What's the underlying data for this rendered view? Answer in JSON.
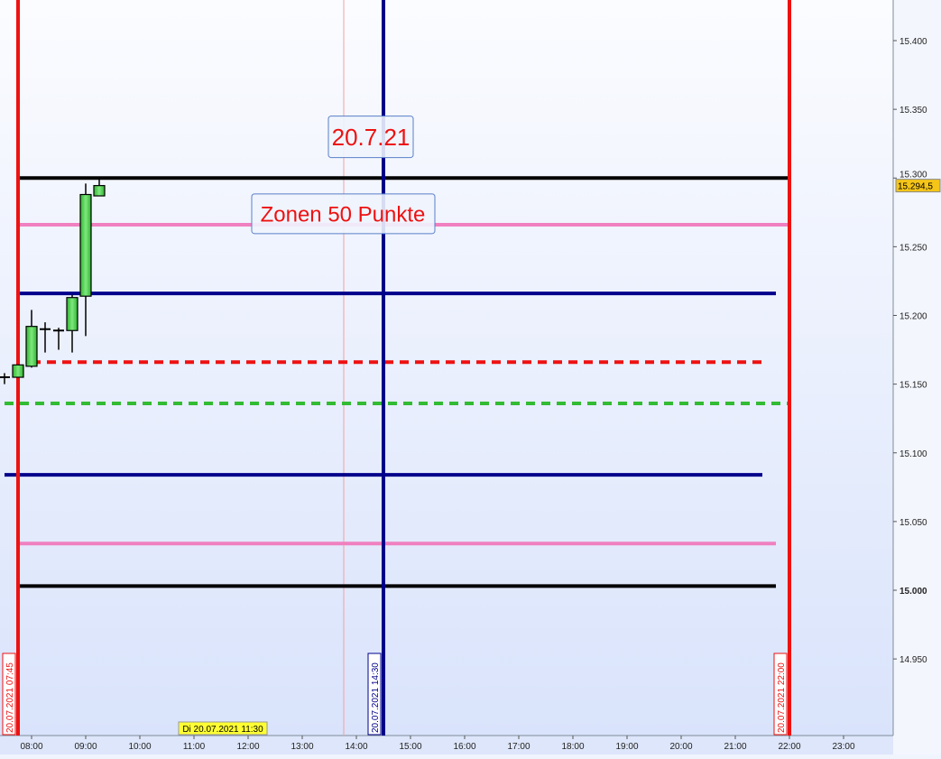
{
  "chart_data": {
    "type": "candlestick",
    "x_axis": {
      "ticks": [
        "08:00",
        "09:00",
        "10:00",
        "11:00",
        "12:00",
        "13:00",
        "14:00",
        "15:00",
        "16:00",
        "17:00",
        "18:00",
        "19:00",
        "20:00",
        "21:00",
        "22:00",
        "23:00"
      ],
      "cursor_label": "Di 20.07.2021 11:30"
    },
    "y_axis": {
      "ticks": [
        "14.950",
        "15.000",
        "15.050",
        "15.100",
        "15.150",
        "15.200",
        "15.250",
        "15.300",
        "15.350",
        "15.400"
      ],
      "bold_tick": "15.000",
      "range": [
        14910,
        15430
      ],
      "last_price_label": "15.294,5",
      "last_price": 15294.5
    },
    "candles": [
      {
        "t": "07:30",
        "o": 15155,
        "h": 15158,
        "l": 15150,
        "c": 15155
      },
      {
        "t": "07:45",
        "o": 15155,
        "h": 15164,
        "l": 15155,
        "c": 15164
      },
      {
        "t": "08:00",
        "o": 15163,
        "h": 15204,
        "l": 15162,
        "c": 15192
      },
      {
        "t": "08:15",
        "o": 15190,
        "h": 15195,
        "l": 15173,
        "c": 15190
      },
      {
        "t": "08:30",
        "o": 15189,
        "h": 15191,
        "l": 15175,
        "c": 15189
      },
      {
        "t": "08:45",
        "o": 15189,
        "h": 15215,
        "l": 15173,
        "c": 15213
      },
      {
        "t": "09:00",
        "o": 15214,
        "h": 15296,
        "l": 15185,
        "c": 15288
      },
      {
        "t": "09:15",
        "o": 15287,
        "h": 15300,
        "l": 15287,
        "c": 15294.5
      }
    ],
    "horizontal_lines": [
      {
        "price": 15300,
        "color": "#000000",
        "style": "solid",
        "from": "07:45",
        "to": "22:00"
      },
      {
        "price": 15266,
        "color": "#f080c0",
        "style": "solid",
        "from": "07:45",
        "to": "22:00"
      },
      {
        "price": 15216,
        "color": "#00008b",
        "style": "solid",
        "from": "07:45",
        "to": "21:45"
      },
      {
        "price": 15166,
        "color": "#ee1111",
        "style": "dashed",
        "from": "08:00",
        "to": "21:30"
      },
      {
        "price": 15136,
        "color": "#33bb33",
        "style": "dashed",
        "from": "07:30",
        "to": "22:00"
      },
      {
        "price": 15084,
        "color": "#00008b",
        "style": "solid",
        "from": "07:30",
        "to": "21:30"
      },
      {
        "price": 15034,
        "color": "#f080c0",
        "style": "solid",
        "from": "07:45",
        "to": "21:45"
      },
      {
        "price": 15003,
        "color": "#000000",
        "style": "solid",
        "from": "07:45",
        "to": "21:45"
      }
    ],
    "vertical_lines": [
      {
        "time": "07:45",
        "color": "#ee1111",
        "label": "20.07.2021 07:45"
      },
      {
        "time": "14:30",
        "color": "#00008b",
        "label": "20.07.2021 14:30"
      },
      {
        "time": "22:00",
        "color": "#ee1111",
        "label": "20.07.2021 22:00"
      }
    ],
    "crosshair_time": "13:46",
    "annotations": [
      {
        "text": "20.7.21",
        "price": 15330,
        "color": "#ee1111"
      },
      {
        "text": "Zonen 50 Punkte",
        "price": 15274,
        "color": "#ee1111"
      }
    ]
  }
}
